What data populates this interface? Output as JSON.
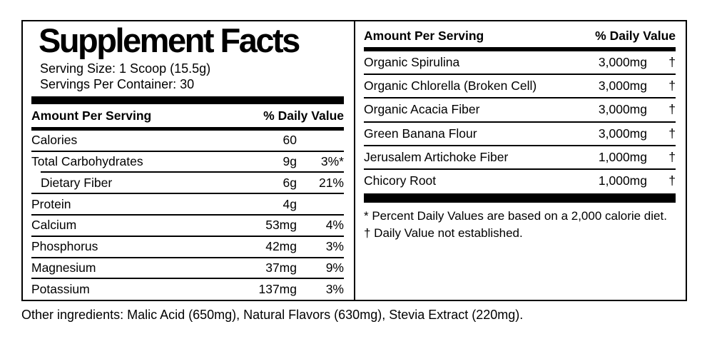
{
  "label": {
    "title": "Supplement Facts",
    "serving_size": "Serving Size: 1 Scoop (15.5g)",
    "servings_per_container": "Servings Per Container: 30",
    "left_table": {
      "header": {
        "amount": "Amount Per Serving",
        "daily_value": "% Daily Value"
      },
      "rows": [
        {
          "name": "Calories",
          "amount": "60",
          "dv": ""
        },
        {
          "name": "Total Carbohydrates",
          "amount": "9g",
          "dv": "3%*"
        },
        {
          "name": "Dietary Fiber",
          "amount": "6g",
          "dv": "21%"
        },
        {
          "name": "Protein",
          "amount": "4g",
          "dv": ""
        },
        {
          "name": "Calcium",
          "amount": "53mg",
          "dv": "4%"
        },
        {
          "name": "Phosphorus",
          "amount": "42mg",
          "dv": "3%"
        },
        {
          "name": "Magnesium",
          "amount": "37mg",
          "dv": "9%"
        },
        {
          "name": "Potassium",
          "amount": "137mg",
          "dv": "3%"
        }
      ]
    },
    "right_table": {
      "header": {
        "amount": "Amount Per Serving",
        "daily_value": "% Daily Value"
      },
      "rows": [
        {
          "name": "Organic Spirulina",
          "amount": "3,000mg",
          "dv": "†"
        },
        {
          "name": "Organic Chlorella (Broken Cell)",
          "amount": "3,000mg",
          "dv": "†"
        },
        {
          "name": "Organic Acacia Fiber",
          "amount": "3,000mg",
          "dv": "†"
        },
        {
          "name": "Green Banana Flour",
          "amount": "3,000mg",
          "dv": "†"
        },
        {
          "name": "Jerusalem Artichoke Fiber",
          "amount": "1,000mg",
          "dv": "†"
        },
        {
          "name": "Chicory Root",
          "amount": "1,000mg",
          "dv": "†"
        }
      ]
    },
    "footnotes": [
      "* Percent Daily Values are based on a 2,000 calorie diet.",
      "† Daily Value not established."
    ],
    "other_ingredients": "Other ingredients: Malic Acid (650mg), Natural Flavors (630mg), Stevia Extract (220mg).",
    "colors": {
      "text": "#000000",
      "background": "#ffffff"
    }
  }
}
